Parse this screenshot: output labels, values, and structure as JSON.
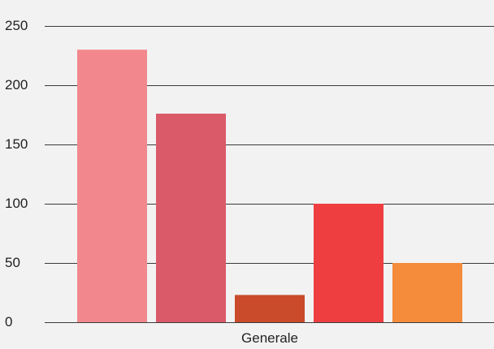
{
  "chart_data": {
    "type": "bar",
    "categories": [
      "Generale"
    ],
    "series": [
      {
        "values": [
          230
        ],
        "color": "#f2888e"
      },
      {
        "values": [
          176
        ],
        "color": "#da5a69"
      },
      {
        "values": [
          23
        ],
        "color": "#c94b2b"
      },
      {
        "values": [
          100
        ],
        "color": "#ee3e3f"
      },
      {
        "values": [
          50
        ],
        "color": "#f48c3b"
      }
    ],
    "ylim": [
      0,
      250
    ],
    "yticks": [
      0,
      50,
      100,
      150,
      200,
      250
    ],
    "grid": true,
    "legend": "none",
    "title": "",
    "xlabel": "",
    "ylabel": ""
  }
}
